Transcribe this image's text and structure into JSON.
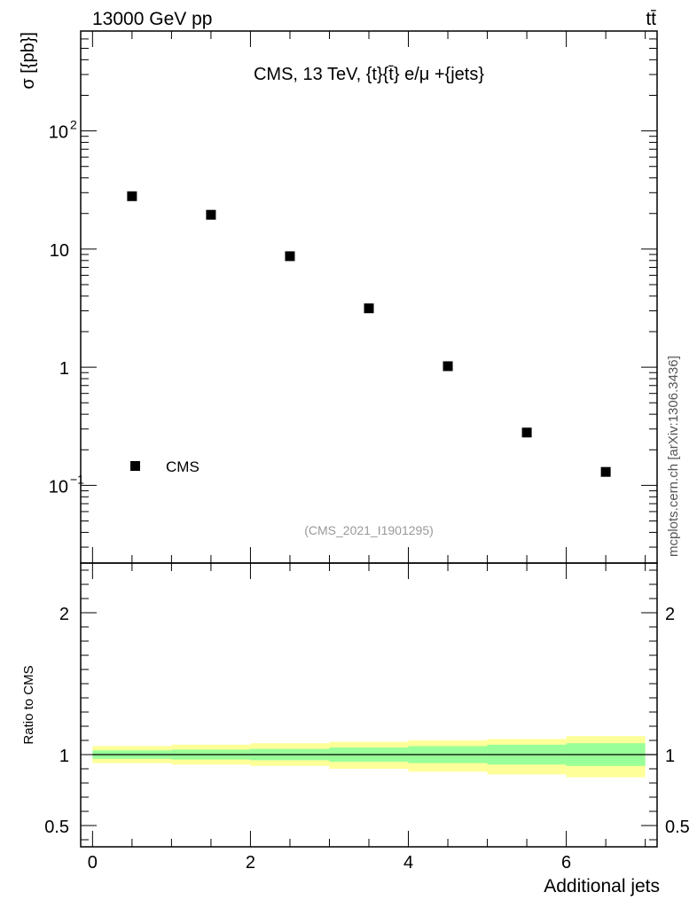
{
  "header": {
    "energy_label": "13000 GeV pp",
    "process_label": "tt̄",
    "side_label": "mcplots.cern.ch [arXiv:1306.3436]"
  },
  "chart_data": [
    {
      "type": "scatter",
      "title": "CMS, 13 TeV, {t}{t̄} e/μ +{jets}",
      "ylabel": "σ [{pb}]",
      "xlabel": "",
      "yscale": "log",
      "ylim": [
        0.022,
        700
      ],
      "xlim": [
        -0.15,
        7.15
      ],
      "y_ticks": [
        {
          "value": 0.1,
          "label": "10",
          "exp": "−1"
        },
        {
          "value": 1,
          "label": "1",
          "exp": ""
        },
        {
          "value": 10,
          "label": "10",
          "exp": ""
        },
        {
          "value": 100,
          "label": "10",
          "exp": "2"
        }
      ],
      "legend": {
        "entries": [
          "CMS"
        ],
        "placement": "bottom-left"
      },
      "watermark": "(CMS_2021_I1901295)",
      "series": [
        {
          "name": "CMS",
          "marker": "square",
          "color": "#000000",
          "x": [
            0.5,
            1.5,
            2.5,
            3.5,
            4.5,
            5.5,
            6.5
          ],
          "y": [
            28,
            19.5,
            8.7,
            3.15,
            1.02,
            0.28,
            0.13
          ]
        }
      ]
    },
    {
      "type": "area",
      "ylabel": "Ratio to CMS",
      "xlabel": "Additional jets",
      "ylim": [
        0.35,
        2.35
      ],
      "xlim": [
        -0.15,
        7.15
      ],
      "x_ticks": [
        0,
        2,
        4,
        6
      ],
      "y_ticks": [
        0.5,
        1,
        2
      ],
      "reference_line": 1,
      "bins": [
        0,
        1,
        2,
        3,
        4,
        5,
        6,
        7
      ],
      "bands": [
        {
          "level": "outer",
          "color": "#ffff99",
          "lower": [
            0.94,
            0.93,
            0.92,
            0.9,
            0.88,
            0.86,
            0.84
          ],
          "upper": [
            1.06,
            1.07,
            1.08,
            1.09,
            1.1,
            1.11,
            1.13
          ]
        },
        {
          "level": "inner",
          "color": "#99ff99",
          "lower": [
            0.97,
            0.965,
            0.96,
            0.95,
            0.94,
            0.93,
            0.92
          ],
          "upper": [
            1.03,
            1.035,
            1.04,
            1.05,
            1.06,
            1.07,
            1.08
          ]
        }
      ]
    }
  ]
}
